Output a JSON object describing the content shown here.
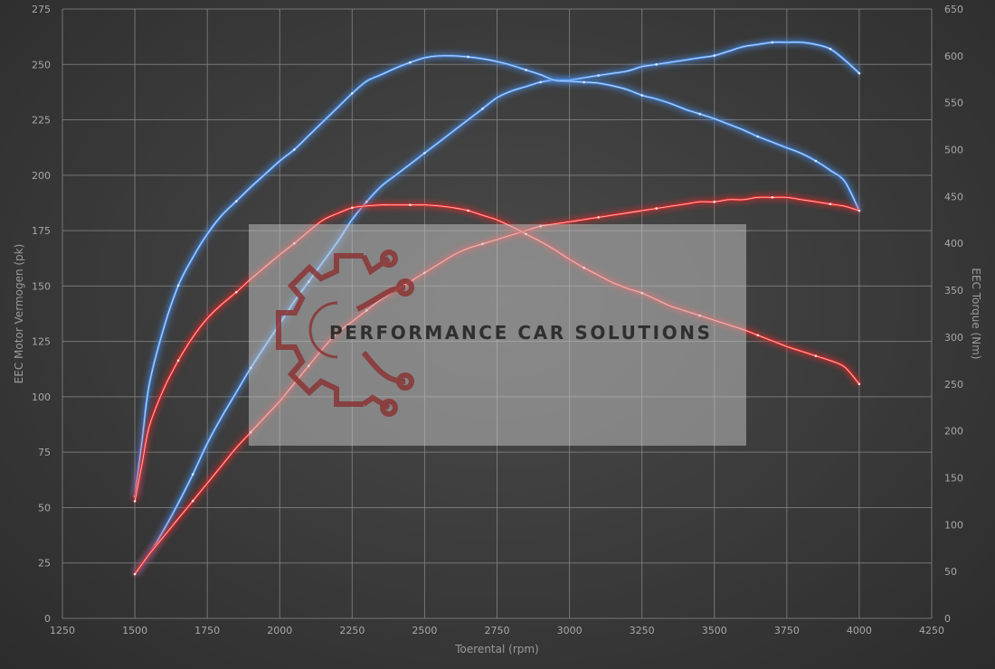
{
  "chart_data": {
    "type": "line",
    "title": "",
    "xlabel": "Toerental (rpm)",
    "ylabel": "EEC Motor Vermogen (pk)",
    "y2label": "EEC Torque (Nm)",
    "xlim": [
      1250,
      4250
    ],
    "ylim": [
      0,
      275
    ],
    "y2lim": [
      0,
      650
    ],
    "x_ticks": [
      1250,
      1500,
      1750,
      2000,
      2250,
      2500,
      2750,
      3000,
      3250,
      3500,
      3750,
      4000,
      4250
    ],
    "y_ticks": [
      0,
      25,
      50,
      75,
      100,
      125,
      150,
      175,
      200,
      225,
      250,
      275
    ],
    "y2_ticks": [
      0,
      50,
      100,
      150,
      200,
      250,
      300,
      350,
      400,
      450,
      500,
      550,
      600,
      650
    ],
    "grid": true,
    "legend": "none",
    "watermark": "PERFORMANCE CAR SOLUTIONS",
    "series": [
      {
        "color": "#4a8ee8",
        "axis": "left",
        "x": [
          1500,
          1550,
          1600,
          1650,
          1700,
          1750,
          1800,
          1850,
          1900,
          1950,
          2000,
          2050,
          2100,
          2150,
          2200,
          2250,
          2300,
          2350,
          2400,
          2450,
          2500,
          2550,
          2600,
          2650,
          2700,
          2750,
          2800,
          2850,
          2900,
          2950,
          3000,
          3050,
          3100,
          3150,
          3200,
          3250,
          3300,
          3350,
          3400,
          3450,
          3500,
          3550,
          3600,
          3650,
          3700,
          3750,
          3800,
          3850,
          3900,
          3950,
          4000
        ],
        "y": [
          20,
          29,
          40,
          52,
          65,
          79,
          91,
          102,
          113,
          123,
          133,
          143,
          152,
          161,
          170,
          180,
          188,
          195,
          200,
          205,
          210,
          215,
          220,
          225,
          230,
          235,
          238,
          240,
          242,
          243,
          243,
          244,
          245,
          246,
          247,
          249,
          250,
          251,
          252,
          253,
          254,
          256,
          258,
          259,
          260,
          260,
          260,
          259,
          257,
          252,
          246
        ]
      },
      {
        "color": "#4a8ee8",
        "axis": "right",
        "x": [
          1500,
          1525,
          1550,
          1600,
          1650,
          1700,
          1750,
          1800,
          1850,
          1900,
          1950,
          2000,
          2050,
          2100,
          2150,
          2200,
          2250,
          2300,
          2350,
          2400,
          2450,
          2500,
          2550,
          2600,
          2650,
          2700,
          2750,
          2800,
          2850,
          2900,
          2950,
          3000,
          3050,
          3100,
          3150,
          3200,
          3250,
          3300,
          3350,
          3400,
          3450,
          3500,
          3550,
          3600,
          3650,
          3700,
          3750,
          3800,
          3850,
          3900,
          3950,
          4000
        ],
        "y": [
          130,
          190,
          250,
          310,
          355,
          385,
          410,
          430,
          445,
          460,
          474,
          488,
          500,
          515,
          530,
          545,
          560,
          573,
          580,
          587,
          593,
          598,
          600,
          600,
          599,
          597,
          594,
          590,
          585,
          580,
          574,
          573,
          572,
          571,
          568,
          564,
          558,
          554,
          549,
          543,
          538,
          533,
          527,
          521,
          514,
          508,
          502,
          496,
          488,
          478,
          466,
          435
        ]
      },
      {
        "color": "#e52a2a",
        "axis": "left",
        "x": [
          1500,
          1550,
          1600,
          1650,
          1700,
          1750,
          1800,
          1850,
          1900,
          1950,
          2000,
          2050,
          2100,
          2150,
          2200,
          2250,
          2300,
          2350,
          2400,
          2450,
          2500,
          2550,
          2600,
          2650,
          2700,
          2750,
          2800,
          2850,
          2900,
          2950,
          3000,
          3050,
          3100,
          3150,
          3200,
          3250,
          3300,
          3350,
          3400,
          3450,
          3500,
          3550,
          3600,
          3650,
          3700,
          3750,
          3800,
          3850,
          3900,
          3950,
          4000
        ],
        "y": [
          20,
          29,
          37,
          45,
          53,
          61,
          69,
          77,
          84,
          91,
          98,
          106,
          114,
          122,
          129,
          134,
          139,
          144,
          148,
          152,
          156,
          160,
          164,
          167,
          169,
          171,
          173,
          175,
          177,
          178,
          179,
          180,
          181,
          182,
          183,
          184,
          185,
          186,
          187,
          188,
          188,
          189,
          189,
          190,
          190,
          190,
          189,
          188,
          187,
          186,
          184
        ]
      },
      {
        "color": "#e52a2a",
        "axis": "right",
        "x": [
          1500,
          1525,
          1550,
          1600,
          1650,
          1700,
          1750,
          1800,
          1850,
          1900,
          1950,
          2000,
          2050,
          2100,
          2150,
          2200,
          2250,
          2300,
          2350,
          2400,
          2450,
          2500,
          2550,
          2600,
          2650,
          2700,
          2750,
          2800,
          2850,
          2900,
          2950,
          3000,
          3050,
          3100,
          3150,
          3200,
          3250,
          3300,
          3350,
          3400,
          3450,
          3500,
          3550,
          3600,
          3650,
          3700,
          3750,
          3800,
          3850,
          3900,
          3950,
          4000
        ],
        "y": [
          125,
          165,
          205,
          245,
          275,
          300,
          320,
          335,
          348,
          362,
          375,
          388,
          400,
          413,
          425,
          432,
          438,
          440,
          441,
          441,
          441,
          441,
          440,
          438,
          435,
          430,
          425,
          418,
          410,
          402,
          393,
          383,
          374,
          366,
          358,
          352,
          347,
          340,
          333,
          328,
          323,
          318,
          313,
          308,
          302,
          296,
          290,
          285,
          280,
          275,
          268,
          250
        ]
      }
    ]
  }
}
